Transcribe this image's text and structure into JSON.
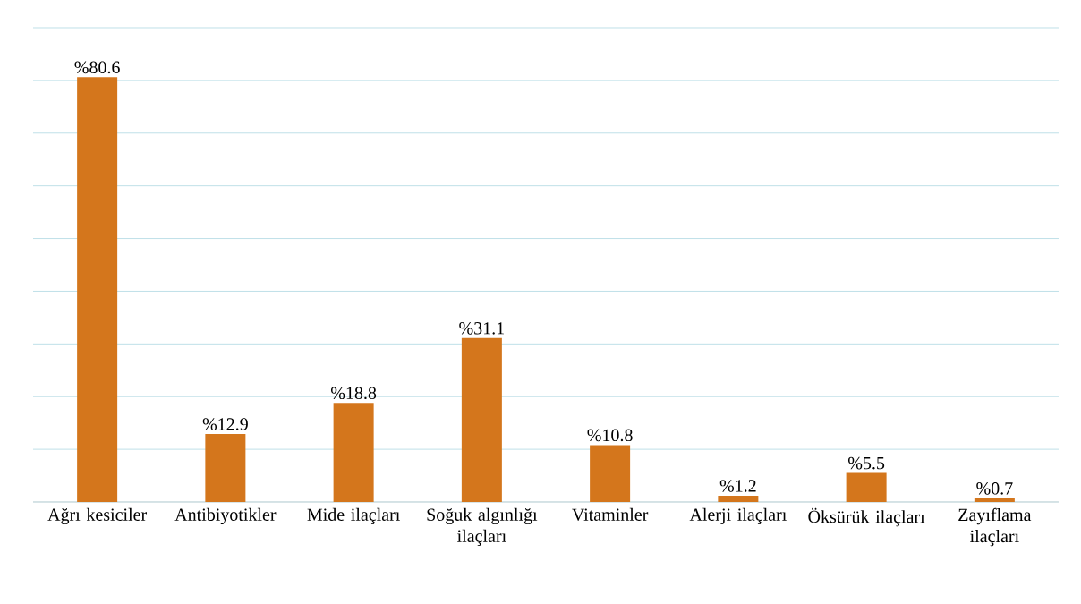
{
  "chart_data": {
    "type": "bar",
    "categories": [
      "Ağrı kesiciler",
      "Antibiyotikler",
      "Mide ilaçları",
      "Soğuk algınlığı ilaçları",
      "Vitaminler",
      "Alerji ilaçları",
      "Öksürük ilaçları",
      "Zayıflama ilaçları"
    ],
    "values": [
      80.6,
      12.9,
      18.8,
      31.1,
      10.8,
      1.2,
      5.5,
      0.7
    ],
    "value_labels": [
      "%80.6",
      "%12.9",
      "%18.8",
      "%31.1",
      "%10.8",
      "%1.2",
      "%5.5",
      "%0.7"
    ],
    "color": "#d4761c",
    "ylim": [
      0,
      90
    ],
    "yticks": [
      {
        "value": 0,
        "label": null
      },
      {
        "value": 10,
        "label": null
      },
      {
        "value": 20,
        "label": null
      },
      {
        "value": 30,
        "label": null
      },
      {
        "value": 40,
        "label": null
      },
      {
        "value": 50,
        "label": null
      },
      {
        "value": 60,
        "label": null
      },
      {
        "value": 70,
        "label": null
      },
      {
        "value": 80,
        "label": null
      },
      {
        "value": 90,
        "label": null
      }
    ],
    "grid": "y",
    "tick_labels": "x"
  }
}
